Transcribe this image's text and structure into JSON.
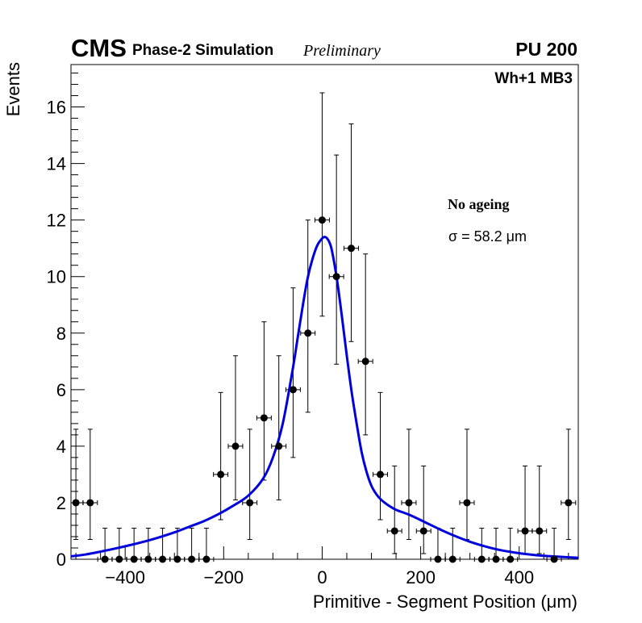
{
  "header": {
    "experiment": "CMS",
    "simulation": "Phase-2 Simulation",
    "status": "Preliminary",
    "pileup": "PU 200",
    "chamber": "Wh+1 MB3"
  },
  "annotations": {
    "ageing": "No ageing",
    "sigma": "σ = 58.2 μm"
  },
  "chart_data": {
    "type": "scatter",
    "title": "",
    "xlabel": "Primitive - Segment Position (μm)",
    "ylabel": "Events",
    "xlim": [
      -510,
      520
    ],
    "ylim": [
      0,
      17.5
    ],
    "xticks": [
      -400,
      -200,
      0,
      200,
      400
    ],
    "xtick_labels": [
      "−400",
      "−200",
      "0",
      "200",
      "400"
    ],
    "yticks": [
      0,
      2,
      4,
      6,
      8,
      10,
      12,
      14,
      16
    ],
    "ytick_labels": [
      "0",
      "2",
      "4",
      "6",
      "8",
      "10",
      "12",
      "14",
      "16"
    ],
    "bin_width": 29.4,
    "series": [
      {
        "name": "data",
        "x": [
          -500,
          -471,
          -441,
          -412,
          -382,
          -353,
          -324,
          -294,
          -265,
          -235,
          -206,
          -176,
          -147,
          -118,
          -88,
          -59,
          -29,
          0,
          29,
          59,
          88,
          118,
          147,
          176,
          206,
          235,
          265,
          294,
          324,
          353,
          382,
          412,
          441,
          471,
          500
        ],
        "y": [
          2,
          2,
          0,
          0,
          0,
          0,
          0,
          0,
          0,
          0,
          3,
          4,
          2,
          5,
          4,
          6,
          8,
          12,
          10,
          11,
          7,
          3,
          1,
          2,
          1,
          0,
          0,
          2,
          0,
          0,
          0,
          1,
          1,
          0,
          2
        ],
        "y_err_up": [
          2.6,
          2.6,
          1.1,
          1.1,
          1.1,
          1.1,
          1.1,
          1.1,
          1.1,
          1.1,
          2.9,
          3.2,
          2.6,
          3.4,
          3.2,
          3.6,
          4.0,
          4.5,
          4.3,
          4.4,
          3.8,
          2.9,
          2.3,
          2.6,
          2.3,
          1.1,
          1.1,
          2.6,
          1.1,
          1.1,
          1.1,
          2.3,
          2.3,
          1.1,
          2.6
        ],
        "y_err_down": [
          1.3,
          1.3,
          0,
          0,
          0,
          0,
          0,
          0,
          0,
          0,
          1.6,
          1.9,
          1.3,
          2.2,
          1.9,
          2.4,
          2.8,
          3.4,
          3.1,
          3.3,
          2.6,
          1.6,
          0.8,
          1.3,
          0.8,
          0,
          0,
          1.3,
          0,
          0,
          0,
          0.8,
          0.8,
          0,
          1.3
        ]
      }
    ],
    "fit": {
      "name": "fit",
      "color": "#0000dd",
      "x": [
        -510,
        -480,
        -450,
        -420,
        -390,
        -360,
        -330,
        -300,
        -270,
        -240,
        -210,
        -180,
        -150,
        -120,
        -100,
        -80,
        -60,
        -50,
        -40,
        -30,
        -20,
        -10,
        0,
        5,
        10,
        15,
        20,
        30,
        40,
        50,
        60,
        70,
        80,
        90,
        100,
        110,
        120,
        135,
        150,
        180,
        210,
        240,
        270,
        300,
        330,
        360,
        390,
        420,
        450,
        480,
        510,
        520
      ],
      "y": [
        0.1,
        0.17,
        0.27,
        0.38,
        0.5,
        0.63,
        0.78,
        0.95,
        1.15,
        1.35,
        1.6,
        1.9,
        2.25,
        2.85,
        3.6,
        4.8,
        6.7,
        7.8,
        8.9,
        9.9,
        10.6,
        11.1,
        11.35,
        11.4,
        11.35,
        11.2,
        10.9,
        9.9,
        8.6,
        7.2,
        5.9,
        4.8,
        3.8,
        3.1,
        2.6,
        2.3,
        2.1,
        1.9,
        1.75,
        1.55,
        1.3,
        1.05,
        0.82,
        0.62,
        0.46,
        0.33,
        0.24,
        0.17,
        0.12,
        0.09,
        0.06,
        0.05
      ]
    }
  }
}
